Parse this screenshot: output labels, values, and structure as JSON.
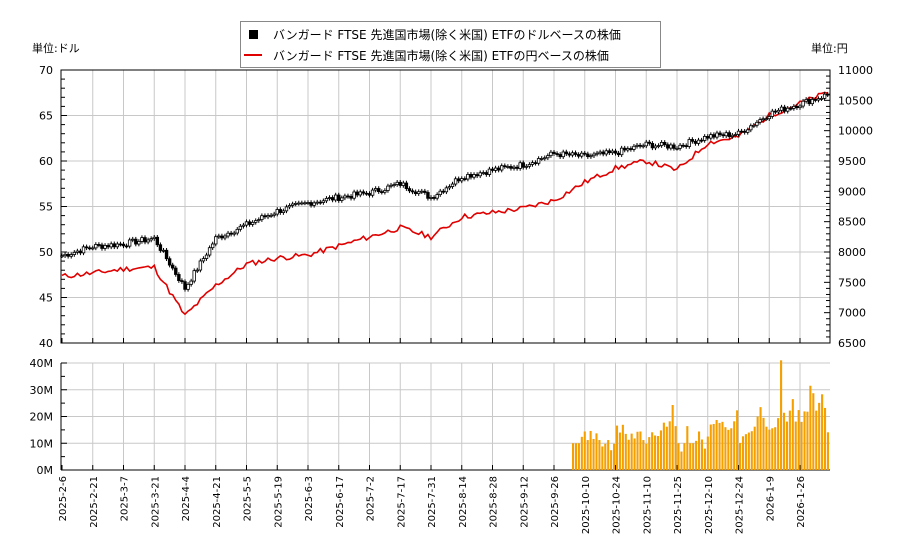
{
  "legend": {
    "series_usd": "バンガード FTSE 先進国市場(除く米国) ETFのドルベースの株価",
    "series_jpy": "バンガード FTSE 先進国市場(除く米国) ETFの円ベースの株価"
  },
  "units": {
    "left": "単位:ドル",
    "right": "単位:円"
  },
  "colors": {
    "candle": "#000000",
    "jpy_line": "#e00000",
    "volume": "#f5a000",
    "grid": "#c8c8c8"
  },
  "chart_data": [
    {
      "type": "line",
      "title": "",
      "xlabel": "",
      "ylabel": "単位:ドル",
      "ylabel_right": "単位:円",
      "ylim": [
        40,
        70
      ],
      "ylim_right": [
        6500,
        11000
      ],
      "yticks": [
        40,
        45,
        50,
        55,
        60,
        65,
        70
      ],
      "yticks_right": [
        6500,
        7000,
        7500,
        8000,
        8500,
        9000,
        9500,
        10000,
        10500,
        11000
      ],
      "grid": true,
      "legend_position": "top-center",
      "x": [
        "2025-2-6",
        "2025-2-21",
        "2025-3-7",
        "2025-3-21",
        "2025-4-4",
        "2025-4-21",
        "2025-5-5",
        "2025-5-19",
        "2025-6-3",
        "2025-6-17",
        "2025-7-2",
        "2025-7-17",
        "2025-7-31",
        "2025-8-14",
        "2025-8-28",
        "2025-9-12",
        "2025-9-26",
        "2025-10-10",
        "2025-10-24",
        "2025-11-10",
        "2025-11-25",
        "2025-12-10",
        "2025-12-24",
        "2026-1-9",
        "2026-1-26"
      ],
      "series": [
        {
          "name": "バンガード FTSE 先進国市場(除く米国) ETFのドルベースの株価",
          "style": "candlestick",
          "values": [
            49.6,
            50.6,
            50.9,
            51.5,
            46.0,
            51.5,
            53.0,
            54.5,
            55.4,
            56.0,
            56.5,
            57.5,
            56.0,
            58.3,
            59.0,
            59.6,
            60.8,
            60.5,
            60.9,
            61.8,
            61.6,
            62.7,
            63.0,
            65.2,
            66.3
          ]
        },
        {
          "name": "バンガード FTSE 先進国市場(除く米国) ETFの円ベースの株価",
          "style": "line",
          "axis": "right",
          "values": [
            7600,
            7650,
            7720,
            7750,
            6950,
            7450,
            7800,
            7900,
            7950,
            8100,
            8250,
            8400,
            8250,
            8580,
            8650,
            8720,
            8850,
            9150,
            9380,
            9500,
            9350,
            9800,
            9900,
            10250,
            10450
          ]
        }
      ]
    },
    {
      "type": "bar",
      "title": "",
      "xlabel": "",
      "ylabel": "",
      "ylim": [
        0,
        40
      ],
      "yticks": [
        "0M",
        "10M",
        "20M",
        "30M",
        "40M"
      ],
      "grid": true,
      "x_start_index": 166,
      "categories_note": "daily bars from ~2025-10-1 to 2026-2-6",
      "values": [
        10,
        10,
        10,
        12.4,
        14.4,
        11.2,
        14.6,
        11.6,
        13.7,
        11.2,
        8.8,
        9.8,
        11.2,
        7.4,
        9.8,
        16.6,
        14.0,
        16.9,
        13.5,
        11.3,
        13.6,
        11.8,
        14.3,
        14.4,
        11.2,
        9.8,
        12.3,
        14.1,
        12.9,
        12.7,
        14.8,
        17.7,
        16.2,
        18.2,
        24.3,
        16.4,
        10.0,
        6.9,
        10.0,
        16.4,
        10.0,
        10.0,
        10.9,
        14.4,
        11.4,
        8.0,
        12.5,
        17.0,
        17.2,
        18.7,
        17.6,
        18.0,
        16.0,
        15.0,
        15.6,
        18.2,
        22.3,
        10.1,
        12.6,
        13.4,
        14.0,
        14.5,
        16.2,
        20.0,
        23.5,
        19.5,
        16.2,
        15.1,
        15.6,
        16.0,
        19.4,
        41.0,
        21.4,
        18.1,
        22.2,
        26.5,
        18.1,
        22.4,
        18.0,
        21.9,
        21.8,
        31.5,
        28.7,
        22.2,
        25.1,
        28.3,
        23.2,
        14.1
      ]
    }
  ],
  "x_axis": {
    "tick_labels": [
      "2025-2-6",
      "2025-2-21",
      "2025-3-7",
      "2025-3-21",
      "2025-4-4",
      "2025-4-21",
      "2025-5-5",
      "2025-5-19",
      "2025-6-3",
      "2025-6-17",
      "2025-7-2",
      "2025-7-17",
      "2025-7-31",
      "2025-8-14",
      "2025-8-28",
      "2025-9-12",
      "2025-9-26",
      "2025-10-10",
      "2025-10-24",
      "2025-11-10",
      "2025-11-25",
      "2025-12-10",
      "2025-12-24",
      "2026-1-9",
      "2026-1-26"
    ]
  },
  "y_axis_left": {
    "tick_labels": [
      "70",
      "65",
      "60",
      "55",
      "50",
      "45",
      "40"
    ]
  },
  "y_axis_right": {
    "tick_labels": [
      "11000",
      "10500",
      "10000",
      "9500",
      "9000",
      "8500",
      "8000",
      "7500",
      "7000",
      "6500"
    ]
  },
  "y_axis_volume": {
    "tick_labels": [
      "40M",
      "30M",
      "20M",
      "10M",
      "0M"
    ]
  }
}
